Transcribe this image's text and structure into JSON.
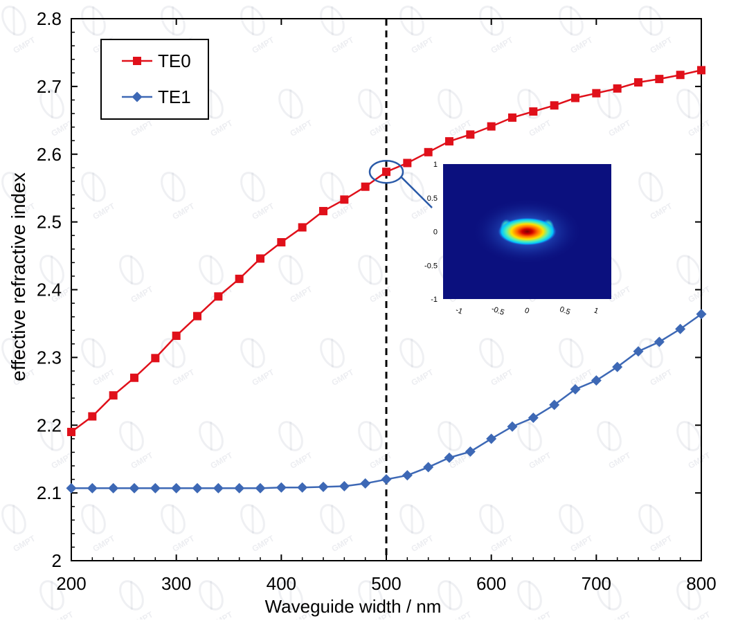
{
  "chart_data": {
    "type": "line",
    "title": "",
    "xlabel": "Waveguide width / nm",
    "ylabel": "effective refractive index",
    "xlim": [
      200,
      800
    ],
    "ylim": [
      2.0,
      2.8
    ],
    "xticks": [
      200,
      300,
      400,
      500,
      600,
      700,
      800
    ],
    "yticks": [
      2.0,
      2.1,
      2.2,
      2.3,
      2.4,
      2.5,
      2.6,
      2.7,
      2.8
    ],
    "ytick_labels": [
      "2",
      "2.1",
      "2.2",
      "2.3",
      "2.4",
      "2.5",
      "2.6",
      "2.7",
      "2.8"
    ],
    "grid": false,
    "legend_position": "top-left",
    "vertical_marker_x": 500,
    "x": [
      200,
      220,
      240,
      260,
      280,
      300,
      320,
      340,
      360,
      380,
      400,
      420,
      440,
      460,
      480,
      500,
      520,
      540,
      560,
      580,
      600,
      620,
      640,
      660,
      680,
      700,
      720,
      740,
      760,
      780,
      800
    ],
    "series": [
      {
        "name": "TE0",
        "color": "#e0101a",
        "marker": "square",
        "values": [
          2.19,
          2.213,
          2.244,
          2.27,
          2.299,
          2.332,
          2.361,
          2.39,
          2.416,
          2.446,
          2.47,
          2.492,
          2.516,
          2.533,
          2.552,
          2.574,
          2.587,
          2.603,
          2.619,
          2.629,
          2.641,
          2.654,
          2.663,
          2.672,
          2.683,
          2.69,
          2.697,
          2.706,
          2.711,
          2.717,
          2.724
        ]
      },
      {
        "name": "TE1",
        "color": "#3d68b5",
        "marker": "diamond",
        "values": [
          2.107,
          2.107,
          2.107,
          2.107,
          2.107,
          2.107,
          2.107,
          2.107,
          2.107,
          2.107,
          2.108,
          2.108,
          2.109,
          2.11,
          2.114,
          2.12,
          2.126,
          2.138,
          2.152,
          2.161,
          2.18,
          2.198,
          2.211,
          2.23,
          2.253,
          2.266,
          2.286,
          2.309,
          2.323,
          2.342,
          2.364
        ]
      }
    ],
    "inset": {
      "type": "heatmap",
      "xticks": [
        "-1",
        "-0.5",
        "0",
        "0.5",
        "1"
      ],
      "yticks": [
        "1",
        "0.5",
        "0",
        "-0.5",
        "-1"
      ],
      "xlim": [
        -1.2,
        1.2
      ],
      "ylim": [
        -1,
        1
      ],
      "colormap": "jet",
      "background_color": "#0b107e",
      "mode_center": [
        0,
        0
      ],
      "highlight_point": {
        "x": 500,
        "y": 2.574
      }
    },
    "watermark": "GMPT"
  }
}
